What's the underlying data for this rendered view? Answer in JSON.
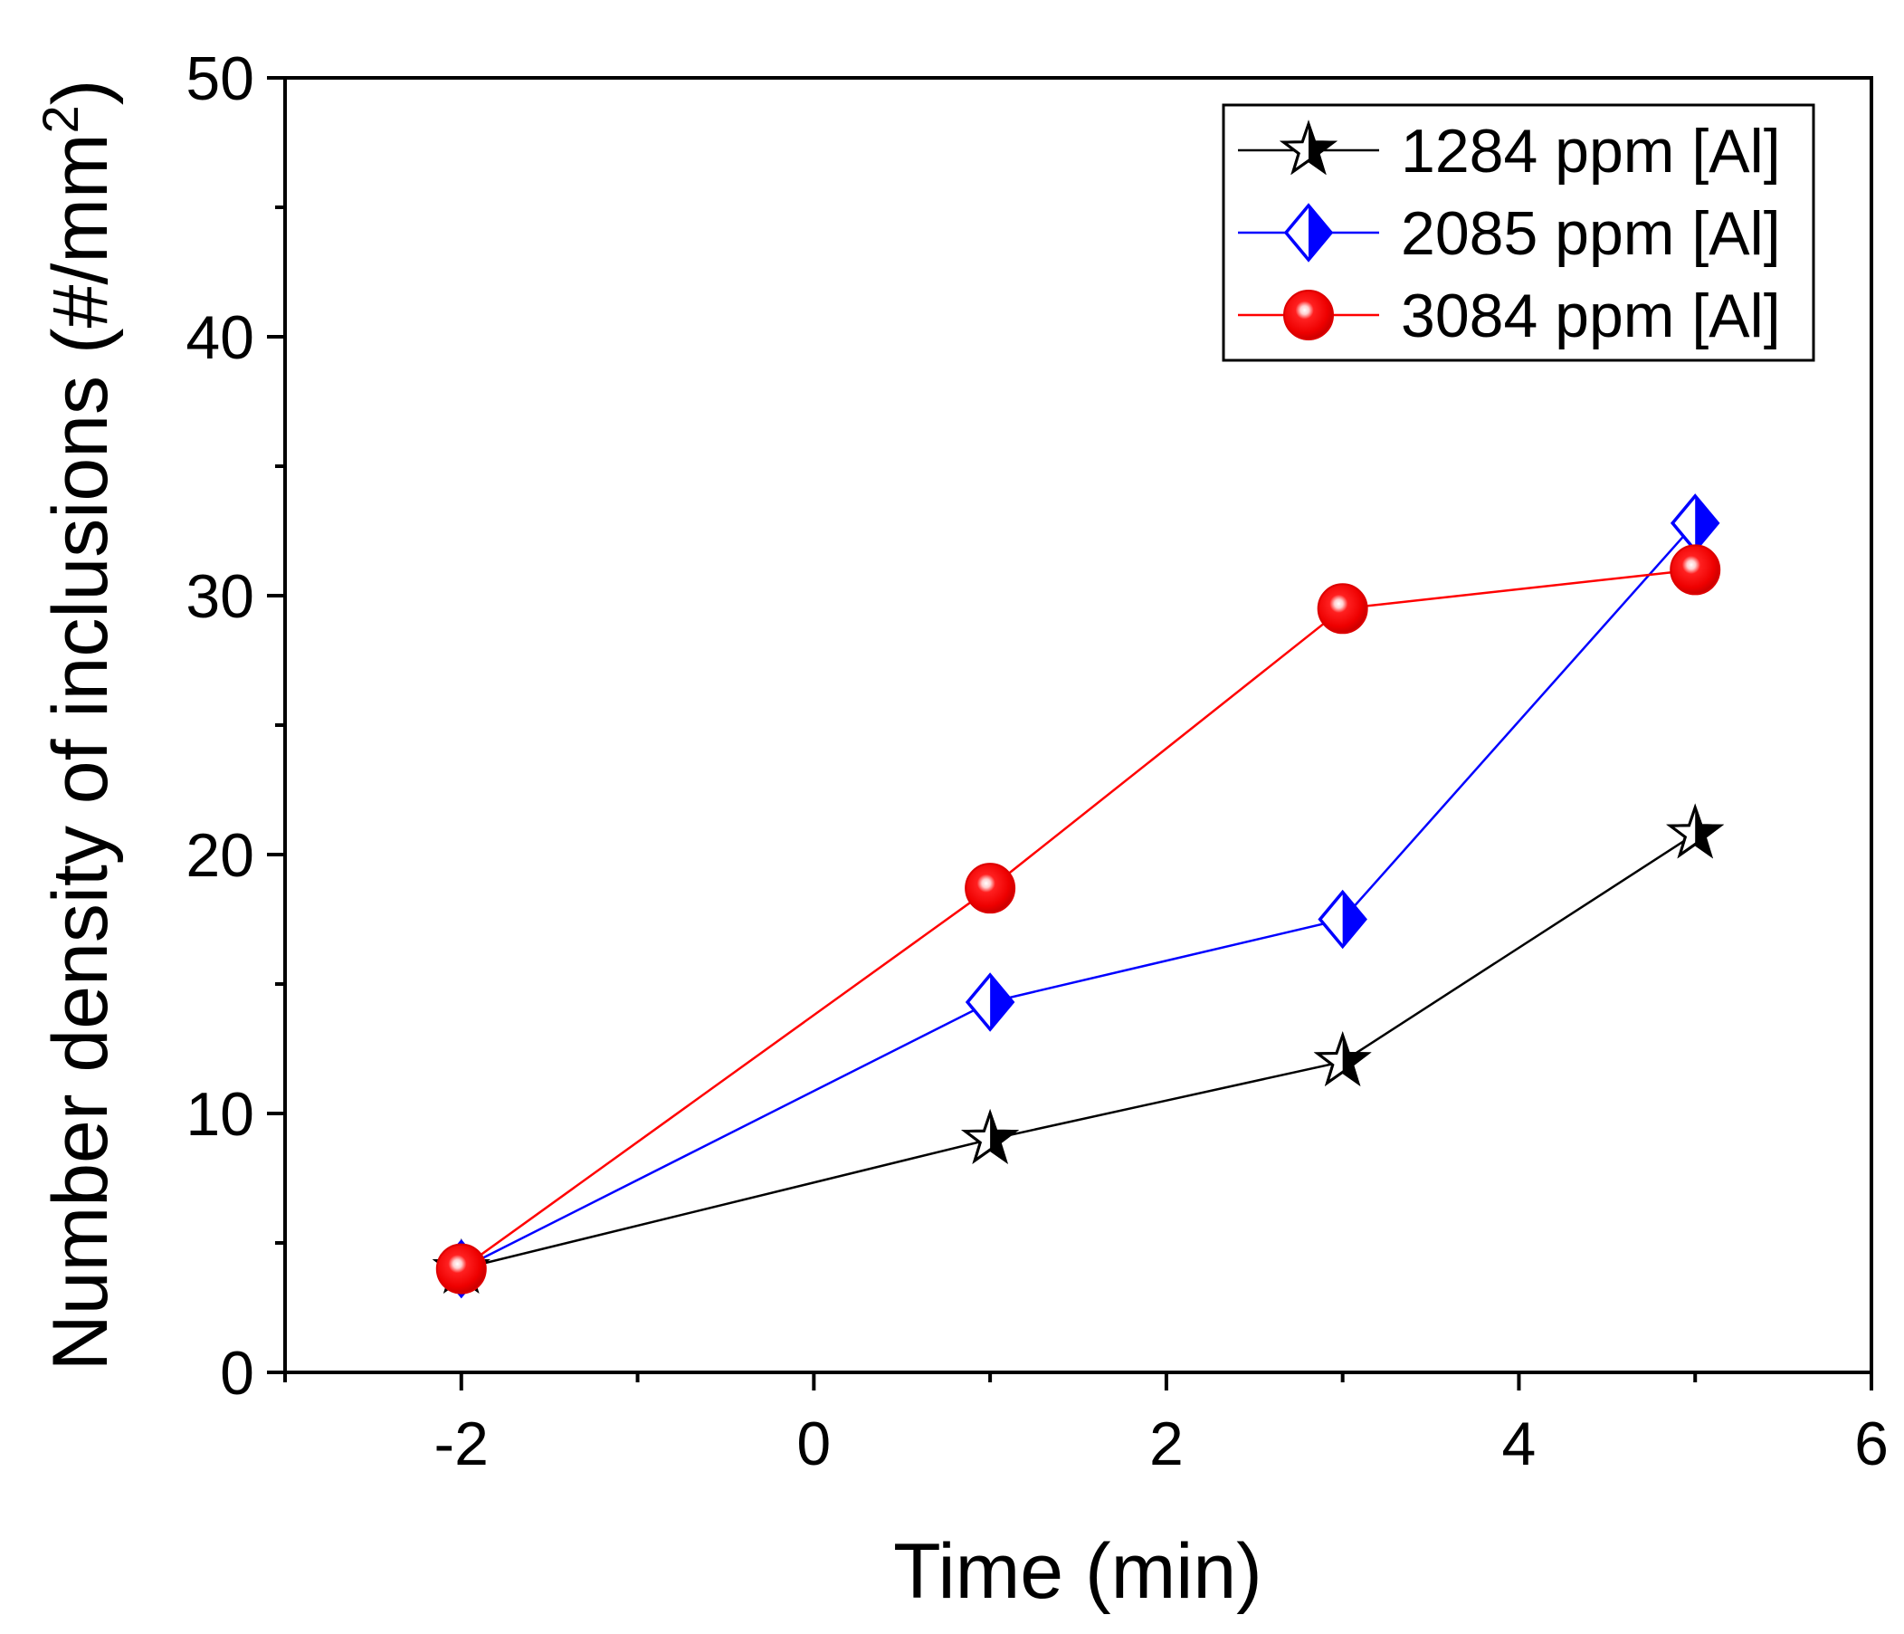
{
  "chart_data": {
    "type": "line",
    "title": "",
    "xlabel": "Time (min)",
    "ylabel_main": "Number density of inclusions (#/mm",
    "ylabel_sup": "2",
    "ylabel_close": ")",
    "xlim": [
      -3,
      6
    ],
    "ylim": [
      0,
      50
    ],
    "xticks": [
      -2,
      0,
      2,
      4,
      6
    ],
    "yticks": [
      0,
      10,
      20,
      30,
      40,
      50
    ],
    "x_minor_step": 1,
    "y_minor_step": 5,
    "grid": false,
    "legend_position": "top-right",
    "series": [
      {
        "name": "1284 ppm [Al]",
        "color": "#000000",
        "marker": "star",
        "x": [
          -2,
          1,
          3,
          5
        ],
        "y": [
          4.0,
          9.0,
          12.0,
          20.8
        ]
      },
      {
        "name": "2085 ppm [Al]",
        "color": "#0000ff",
        "marker": "half-diamond",
        "x": [
          -2,
          1,
          3,
          5
        ],
        "y": [
          4.0,
          14.3,
          17.5,
          32.8
        ]
      },
      {
        "name": "3084 ppm [Al]",
        "color": "#ff0000",
        "marker": "sphere",
        "x": [
          -2,
          1,
          3,
          5
        ],
        "y": [
          4.0,
          18.7,
          29.5,
          31.0
        ]
      }
    ]
  }
}
